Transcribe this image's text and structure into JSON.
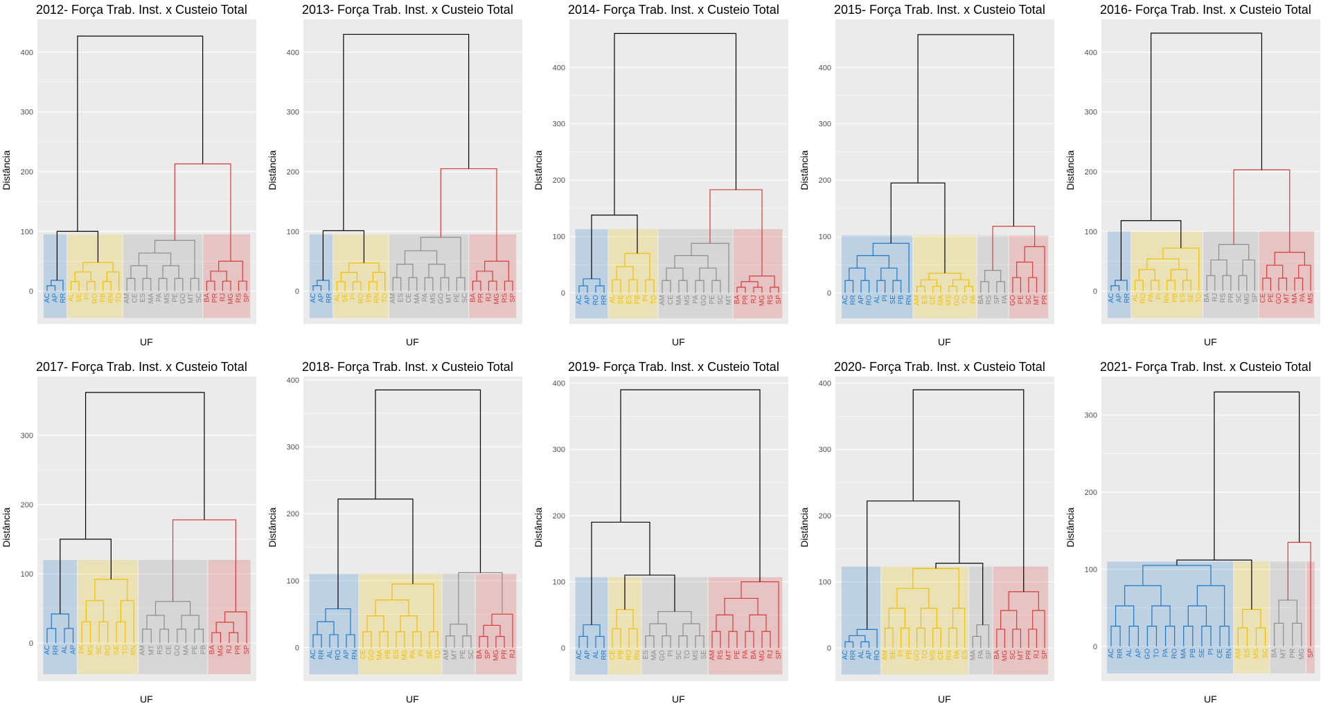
{
  "colors": {
    "blue": "#1f77c4",
    "yellow": "#efc000",
    "gray": "#8c8c8c",
    "red": "#d73a3a",
    "black": "#000000",
    "panel_bg": "#ebebeb",
    "grid": "#ffffff"
  },
  "chart_data": [
    {
      "type": "dendrogram",
      "title": "2012- Força Trab. Inst. x Custeio Total",
      "xlabel": "UF",
      "ylabel": "Distância",
      "yticks": [
        0,
        100,
        200,
        300,
        400
      ],
      "ylim": [
        -55,
        455
      ],
      "top_height": 427,
      "cut_height": 95,
      "clusters": [
        {
          "color": "blue",
          "leaves": [
            "AC",
            "AP",
            "RR"
          ],
          "height": 18
        },
        {
          "color": "yellow",
          "leaves": [
            "AL",
            "SE",
            "PI",
            "RO",
            "PB",
            "RN",
            "TO"
          ],
          "height": 48
        },
        {
          "color": "gray",
          "leaves": [
            "AM",
            "CE",
            "ES",
            "MA",
            "PA",
            "MS",
            "PE",
            "GO",
            "MT",
            "SC"
          ],
          "height": 85
        },
        {
          "color": "red",
          "leaves": [
            "BA",
            "PR",
            "RJ",
            "MG",
            "RS",
            "SP"
          ],
          "height": 50
        }
      ],
      "merges": [
        {
          "a": 0,
          "b": 1,
          "height": 100
        },
        {
          "a": 2,
          "b": 3,
          "height": 213,
          "color": "red"
        },
        {
          "a": "m0",
          "b": "m1",
          "height": 427
        }
      ]
    },
    {
      "type": "dendrogram",
      "title": "2013- Força Trab. Inst. x Custeio Total",
      "xlabel": "UF",
      "ylabel": "Distância",
      "yticks": [
        0,
        100,
        200,
        300,
        400
      ],
      "ylim": [
        -55,
        455
      ],
      "top_height": 430,
      "cut_height": 95,
      "clusters": [
        {
          "color": "blue",
          "leaves": [
            "AC",
            "AP",
            "RR"
          ],
          "height": 18
        },
        {
          "color": "yellow",
          "leaves": [
            "AL",
            "SE",
            "PI",
            "RO",
            "PB",
            "RN",
            "TO"
          ],
          "height": 47
        },
        {
          "color": "gray",
          "leaves": [
            "AM",
            "ES",
            "CE",
            "MA",
            "PA",
            "MS",
            "GO",
            "MT",
            "PE",
            "SC"
          ],
          "height": 90
        },
        {
          "color": "red",
          "leaves": [
            "BA",
            "PR",
            "RJ",
            "MG",
            "RS",
            "SP"
          ],
          "height": 50
        }
      ],
      "merges": [
        {
          "a": 0,
          "b": 1,
          "height": 101
        },
        {
          "a": 2,
          "b": 3,
          "height": 205,
          "color": "red"
        },
        {
          "a": "m0",
          "b": "m1",
          "height": 430
        }
      ]
    },
    {
      "type": "dendrogram",
      "title": "2014- Força Trab. Inst. x Custeio Total",
      "xlabel": "UF",
      "ylabel": "Distância",
      "yticks": [
        0,
        100,
        200,
        300,
        400
      ],
      "ylim": [
        -55,
        485
      ],
      "top_height": 460,
      "cut_height": 113,
      "clusters": [
        {
          "color": "blue",
          "leaves": [
            "AC",
            "AP",
            "RO",
            "RR"
          ],
          "height": 25
        },
        {
          "color": "yellow",
          "leaves": [
            "AL",
            "SE",
            "ES",
            "PB",
            "PI",
            "TO"
          ],
          "height": 70
        },
        {
          "color": "gray",
          "leaves": [
            "AM",
            "CE",
            "MA",
            "MS",
            "PA",
            "GO",
            "PE",
            "SC",
            "MT"
          ],
          "height": 88
        },
        {
          "color": "red",
          "leaves": [
            "BA",
            "PR",
            "RJ",
            "MG",
            "RS",
            "SP"
          ],
          "height": 30
        }
      ],
      "merges": [
        {
          "a": 0,
          "b": 1,
          "height": 138
        },
        {
          "a": 2,
          "b": 3,
          "height": 183,
          "color": "red"
        },
        {
          "a": "m0",
          "b": "m1",
          "height": 460
        }
      ]
    },
    {
      "type": "dendrogram",
      "title": "2015- Força Trab. Inst. x Custeio Total",
      "xlabel": "UF",
      "ylabel": "Distância",
      "yticks": [
        0,
        100,
        200,
        300,
        400
      ],
      "ylim": [
        -55,
        485
      ],
      "top_height": 458,
      "cut_height": 102,
      "clusters": [
        {
          "color": "blue",
          "leaves": [
            "AC",
            "RR",
            "AP",
            "RO",
            "AL",
            "PI",
            "SE",
            "PB",
            "RN"
          ],
          "height": 88
        },
        {
          "color": "yellow",
          "leaves": [
            "AM",
            "ES",
            "CE",
            "MA",
            "MS",
            "GO",
            "TO",
            "PA"
          ],
          "height": 35
        },
        {
          "color": "gray",
          "leaves": [
            "BA",
            "RS",
            "SP",
            "PA"
          ],
          "height": 40
        },
        {
          "color": "red",
          "leaves": [
            "GO",
            "PE",
            "SC",
            "MT",
            "PR"
          ],
          "height": 82
        }
      ],
      "merges": [
        {
          "a": 0,
          "b": 1,
          "height": 195
        },
        {
          "a": 2,
          "b": 3,
          "height": 118,
          "color": "red"
        },
        {
          "a": "m0",
          "b": "m1",
          "height": 458
        }
      ]
    },
    {
      "type": "dendrogram",
      "title": "2016- Força Trab. Inst. x Custeio Total",
      "xlabel": "UF",
      "ylabel": "Distância",
      "yticks": [
        0,
        100,
        200,
        300,
        400
      ],
      "ylim": [
        -55,
        455
      ],
      "top_height": 432,
      "cut_height": 100,
      "clusters": [
        {
          "color": "blue",
          "leaves": [
            "AC",
            "AP",
            "RR"
          ],
          "height": 18
        },
        {
          "color": "yellow",
          "leaves": [
            "AL",
            "RO",
            "PA",
            "PI",
            "RN",
            "PB",
            "ES",
            "SE",
            "TO"
          ],
          "height": 72
        },
        {
          "color": "gray",
          "leaves": [
            "BA",
            "RJ",
            "RS",
            "PR",
            "SC",
            "MG",
            "SP"
          ],
          "height": 78
        },
        {
          "color": "red",
          "leaves": [
            "CE",
            "PE",
            "GO",
            "MT",
            "MA",
            "PA",
            "MS"
          ],
          "height": 65
        }
      ],
      "merges": [
        {
          "a": 0,
          "b": 1,
          "height": 118
        },
        {
          "a": 2,
          "b": 3,
          "height": 203,
          "color": "red"
        },
        {
          "a": "m0",
          "b": "m1",
          "height": 432
        }
      ]
    },
    {
      "type": "dendrogram",
      "title": "2017- Força Trab. Inst. x Custeio Total",
      "xlabel": "UF",
      "ylabel": "Distância",
      "yticks": [
        0,
        100,
        200,
        300
      ],
      "ylim": [
        -55,
        385
      ],
      "top_height": 362,
      "cut_height": 120,
      "clusters": [
        {
          "color": "blue",
          "leaves": [
            "AC",
            "RR",
            "AL",
            "AP"
          ],
          "height": 42
        },
        {
          "color": "yellow",
          "leaves": [
            "PA",
            "MS",
            "SC",
            "RO",
            "SE",
            "TO",
            "RN"
          ],
          "height": 92
        },
        {
          "color": "gray",
          "leaves": [
            "AM",
            "MT",
            "RS",
            "CE",
            "GO",
            "MA",
            "PE",
            "PB"
          ],
          "height": 60
        },
        {
          "color": "red",
          "leaves": [
            "BA",
            "MG",
            "RJ",
            "PR",
            "SP"
          ],
          "height": 45
        }
      ],
      "merges": [
        {
          "a": 0,
          "b": 1,
          "height": 150
        },
        {
          "a": 2,
          "b": 3,
          "height": 178,
          "color": "red"
        },
        {
          "a": "m0",
          "b": "m1",
          "height": 362
        }
      ]
    },
    {
      "type": "dendrogram",
      "title": "2018- Força Trab. Inst. x Custeio Total",
      "xlabel": "UF",
      "ylabel": "Distância",
      "yticks": [
        0,
        100,
        200,
        300,
        400
      ],
      "ylim": [
        -50,
        405
      ],
      "top_height": 385,
      "cut_height": 110,
      "clusters": [
        {
          "color": "blue",
          "leaves": [
            "AC",
            "RR",
            "AL",
            "RO",
            "AP",
            "RN"
          ],
          "height": 58
        },
        {
          "color": "yellow",
          "leaves": [
            "CE",
            "GO",
            "MA",
            "PB",
            "ES",
            "MS",
            "PA",
            "PI",
            "SE",
            "TO"
          ],
          "height": 95
        },
        {
          "color": "gray",
          "leaves": [
            "AM",
            "MT",
            "PE",
            "SC"
          ],
          "height": 35
        },
        {
          "color": "red",
          "leaves": [
            "BA",
            "SP",
            "MG",
            "PR",
            "RJ"
          ],
          "height": 50
        }
      ],
      "merges": [
        {
          "a": 0,
          "b": 1,
          "height": 222
        },
        {
          "a": 2,
          "b": 3,
          "height": 112,
          "color": "gray"
        },
        {
          "a": "m0",
          "b": "m1",
          "height": 385
        }
      ]
    },
    {
      "type": "dendrogram",
      "title": "2019- Força Trab. Inst. x Custeio Total",
      "xlabel": "UF",
      "ylabel": "Distância",
      "yticks": [
        0,
        100,
        200,
        300,
        400
      ],
      "ylim": [
        -50,
        410
      ],
      "top_height": 390,
      "cut_height": 107,
      "clusters": [
        {
          "color": "blue",
          "leaves": [
            "AC",
            "AP",
            "AL",
            "RR"
          ],
          "height": 35
        },
        {
          "color": "yellow",
          "leaves": [
            "CE",
            "PB",
            "RO",
            "RN"
          ],
          "height": 58
        },
        {
          "color": "gray",
          "leaves": [
            "ES",
            "MA",
            "GO",
            "PI",
            "SC",
            "TO",
            "MS",
            "SE"
          ],
          "height": 55
        },
        {
          "color": "red",
          "leaves": [
            "AM",
            "RS",
            "MT",
            "PE",
            "PA",
            "BA",
            "MG",
            "RJ",
            "SP"
          ],
          "height": 100
        }
      ],
      "merges": [
        {
          "a": 1,
          "b": 2,
          "height": 110
        },
        {
          "a": 0,
          "b": "m0",
          "height": 190
        },
        {
          "a": "m1",
          "b": 3,
          "height": 390
        }
      ]
    },
    {
      "type": "dendrogram",
      "title": "2020- Força Trab. Inst. x Custeio Total",
      "xlabel": "UF",
      "ylabel": "Distância",
      "yticks": [
        0,
        100,
        200,
        300,
        400
      ],
      "ylim": [
        -50,
        410
      ],
      "top_height": 390,
      "cut_height": 123,
      "clusters": [
        {
          "color": "blue",
          "leaves": [
            "AC",
            "RR",
            "AL",
            "AP",
            "RO"
          ],
          "height": 28
        },
        {
          "color": "yellow",
          "leaves": [
            "AM",
            "SE",
            "PI",
            "PB",
            "GO",
            "TO",
            "MS",
            "CE",
            "RN",
            "PA",
            "ES"
          ],
          "height": 120
        },
        {
          "color": "gray",
          "leaves": [
            "MA",
            "PA",
            "SP"
          ],
          "height": 35
        },
        {
          "color": "red",
          "leaves": [
            "BA",
            "MG",
            "SC",
            "MT",
            "PR",
            "RJ",
            "SP"
          ],
          "height": 85
        }
      ],
      "merges": [
        {
          "a": 1,
          "b": 2,
          "height": 128
        },
        {
          "a": 0,
          "b": "m0",
          "height": 222
        },
        {
          "a": "m1",
          "b": 3,
          "height": 390
        }
      ]
    },
    {
      "type": "dendrogram",
      "title": "2021- Força Trab. Inst. x Custeio Total",
      "xlabel": "UF",
      "ylabel": "Distância",
      "yticks": [
        0,
        100,
        200,
        300
      ],
      "ylim": [
        -45,
        350
      ],
      "top_height": 330,
      "cut_height": 110,
      "clusters": [
        {
          "color": "blue",
          "leaves": [
            "AC",
            "RR",
            "AL",
            "AP",
            "GO",
            "TO",
            "PA",
            "RO",
            "MA",
            "PB",
            "SE",
            "PI",
            "CE",
            "RN"
          ],
          "height": 105
        },
        {
          "color": "yellow",
          "leaves": [
            "AM",
            "ES",
            "MS",
            "SC"
          ],
          "height": 48
        },
        {
          "color": "gray",
          "leaves": [
            "BA",
            "MT",
            "PR",
            "MG"
          ],
          "height": 60
        },
        {
          "color": "red",
          "leaves": [
            "SP"
          ],
          "height": 0
        }
      ],
      "merges": [
        {
          "a": 0,
          "b": 1,
          "height": 112
        },
        {
          "a": 2,
          "b": 3,
          "height": 135,
          "color": "red"
        },
        {
          "a": "m0",
          "b": "m1",
          "height": 330
        }
      ]
    }
  ]
}
